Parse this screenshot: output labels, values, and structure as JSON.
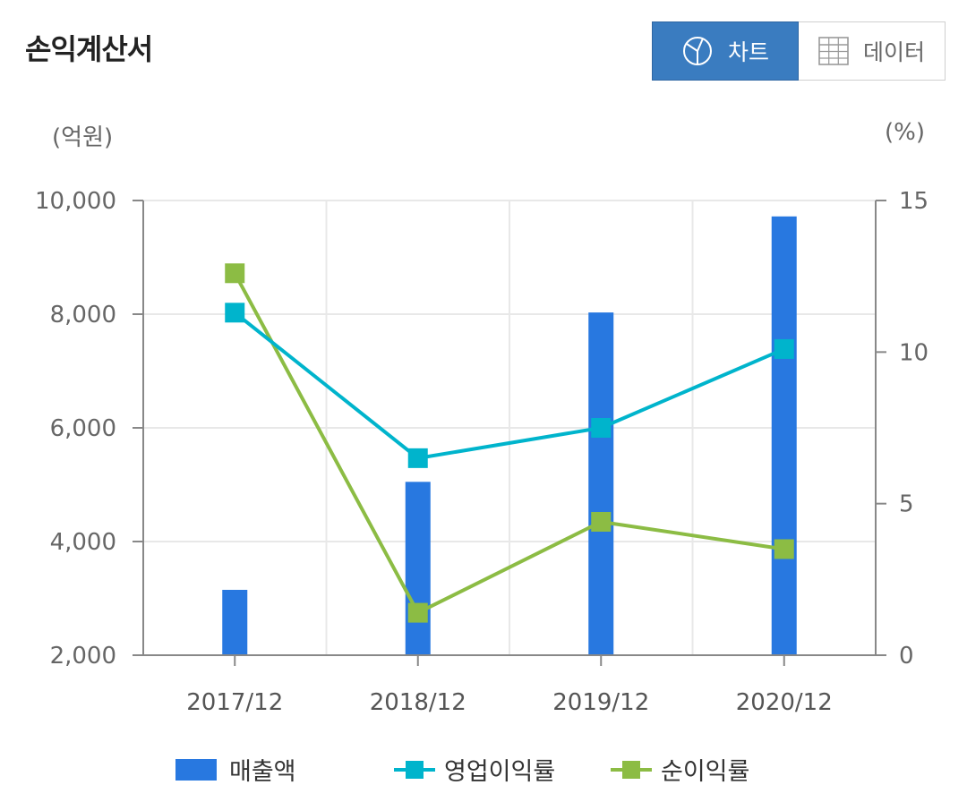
{
  "header": {
    "title": "손익계산서"
  },
  "toggle": {
    "chart_label": "차트",
    "data_label": "데이터"
  },
  "units": {
    "left": "(억원)",
    "right": "(%)"
  },
  "colors": {
    "bar": "#2878e0",
    "op_margin": "#00b4cc",
    "net_margin": "#8cbc44",
    "axis": "#888888",
    "grid": "#e8e8e8"
  },
  "chart_data": {
    "type": "bar",
    "categories": [
      "2017/12",
      "2018/12",
      "2019/12",
      "2020/12"
    ],
    "left_axis": {
      "ylim": [
        2000,
        10000
      ],
      "ticks": [
        2000,
        4000,
        6000,
        8000,
        10000
      ],
      "tick_labels": [
        "2,000",
        "4,000",
        "6,000",
        "8,000",
        "10,000"
      ],
      "unit": "(억원)"
    },
    "right_axis": {
      "ylim": [
        0,
        15
      ],
      "ticks": [
        0,
        5,
        10,
        15
      ],
      "tick_labels": [
        "0",
        "5",
        "10",
        "15"
      ],
      "unit": "(%)"
    },
    "series": [
      {
        "name": "매출액",
        "type": "bar",
        "axis": "left",
        "values": [
          3150,
          5050,
          8030,
          9720
        ]
      },
      {
        "name": "영업이익률",
        "type": "line",
        "axis": "right",
        "values": [
          11.3,
          6.5,
          7.5,
          10.1
        ]
      },
      {
        "name": "순이익률",
        "type": "line",
        "axis": "right",
        "values": [
          12.6,
          1.4,
          4.4,
          3.5
        ]
      }
    ],
    "grid": true,
    "legend_position": "bottom"
  }
}
